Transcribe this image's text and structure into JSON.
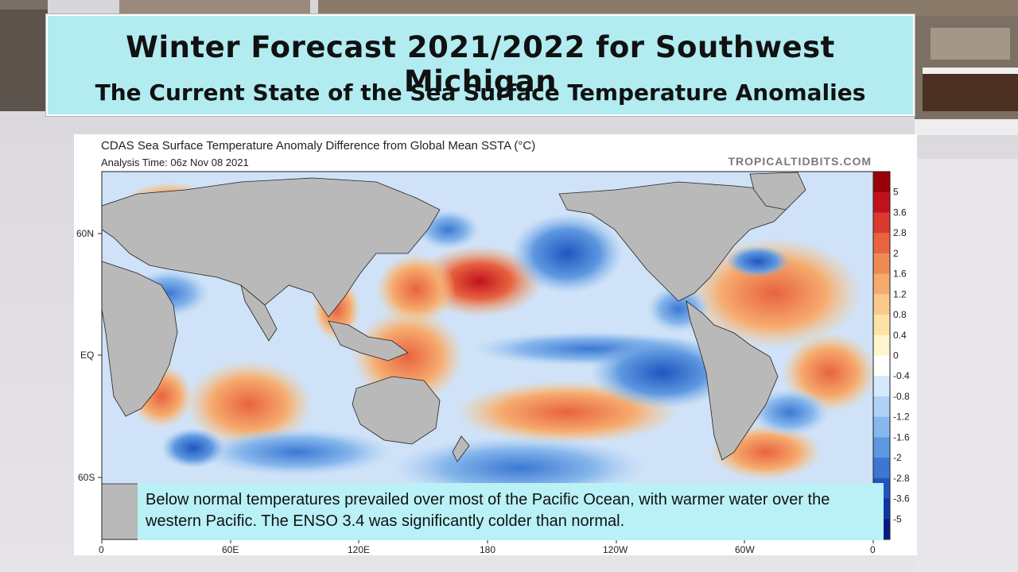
{
  "slide": {
    "title": "Winter Forecast 2021/2022 for Southwest Michigan",
    "subtitle": "The  Current State of the Sea Surface Temperature Anomalies"
  },
  "map": {
    "title": "CDAS Sea Surface Temperature Anomaly Difference from Global Mean SSTA (°C)",
    "analysis_time": "Analysis Time: 06z Nov 08 2021",
    "source": "TROPICALTIDBITS.COM",
    "lat_labels": [
      "60N",
      "EQ",
      "60S"
    ],
    "lon_labels": [
      "0",
      "60E",
      "120E",
      "180",
      "120W",
      "60W",
      "0"
    ],
    "colorbar_labels": [
      "5",
      "3.6",
      "2.8",
      "2",
      "1.6",
      "1.2",
      "0.8",
      "0.4",
      "0",
      "-0.4",
      "-0.8",
      "-1.2",
      "-1.6",
      "-2",
      "-2.8",
      "-3.6",
      "-5"
    ],
    "colorbar_colors": [
      "#9a0007",
      "#c1121c",
      "#da3a2e",
      "#e8633f",
      "#f08a55",
      "#f6ab6e",
      "#fac98a",
      "#fde3a8",
      "#fff6cf",
      "#ffffff",
      "#d6e8fb",
      "#b0d1f5",
      "#87b7ec",
      "#5e98e0",
      "#3c78d3",
      "#1f55c0",
      "#0f34a6",
      "#071a86"
    ],
    "land_color": "#b9b9b9"
  },
  "caption": {
    "text": "Below normal temperatures prevailed over most of the Pacific Ocean, with warmer water over the western Pacific. The ENSO 3.4 was significantly colder than normal."
  }
}
